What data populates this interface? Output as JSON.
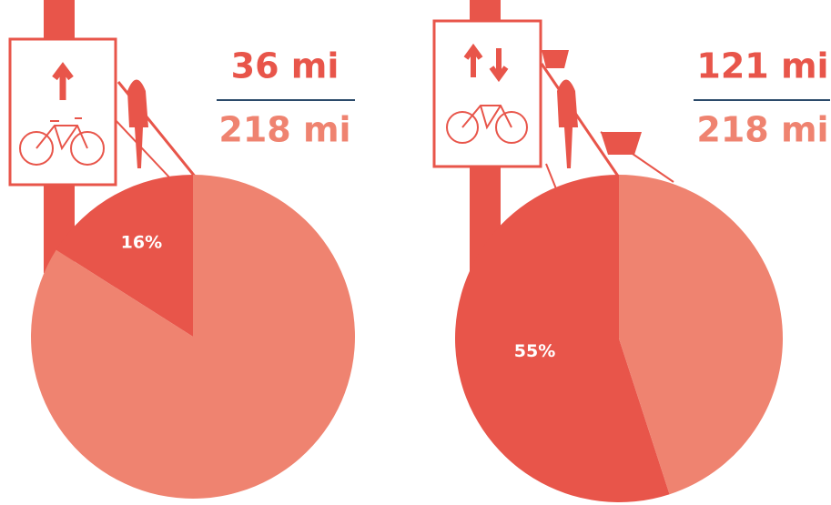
{
  "chart_data": [
    {
      "type": "pie",
      "values": [
        16,
        84
      ],
      "value_labels": [
        "16%",
        null
      ],
      "colors": [
        "#e8554a",
        "#ef8370"
      ],
      "fraction": {
        "numerator": "36 mi",
        "denominator": "218 mi"
      }
    },
    {
      "type": "pie",
      "values": [
        55,
        45
      ],
      "value_labels": [
        "55%",
        null
      ],
      "colors": [
        "#e8554a",
        "#ef8370"
      ],
      "fraction": {
        "numerator": "121 mi",
        "denominator": "218 mi"
      }
    }
  ]
}
